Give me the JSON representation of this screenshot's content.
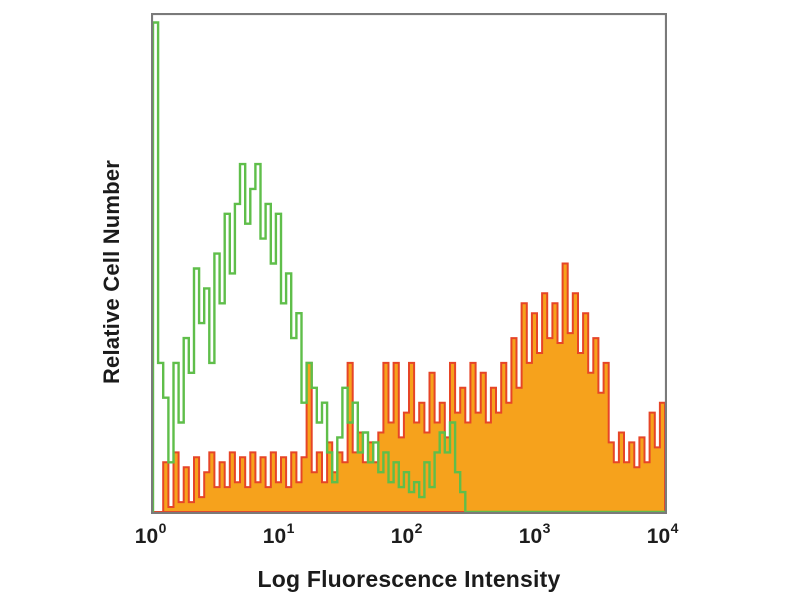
{
  "figure": {
    "background": "#ffffff",
    "frame_color": "#7a7a7a"
  },
  "chart_data": {
    "type": "area",
    "subtype": "flow-cytometry-histogram-overlay",
    "title": "",
    "xlabel": "Log Fluorescence Intensity",
    "ylabel": "Relative Cell Number",
    "x_scale": "log10",
    "xlim_log": [
      0,
      4
    ],
    "ylim": [
      0,
      1
    ],
    "grid": false,
    "legend": "none",
    "tick_base": "10",
    "x_tick_exponents": [
      0,
      1,
      2,
      3,
      4
    ],
    "bins_per_series": 100,
    "series": [
      {
        "name": "orange_filled_histogram",
        "style": "filled",
        "fill_color": "#f6a21c",
        "line_color": "#e64527",
        "values": [
          0,
          0,
          0.1,
          0.01,
          0.12,
          0.02,
          0.09,
          0.02,
          0.11,
          0.03,
          0.08,
          0.12,
          0.05,
          0.1,
          0.05,
          0.12,
          0.06,
          0.11,
          0.05,
          0.12,
          0.06,
          0.11,
          0.05,
          0.12,
          0.06,
          0.11,
          0.05,
          0.12,
          0.06,
          0.11,
          0.3,
          0.08,
          0.12,
          0.06,
          0.14,
          0.08,
          0.12,
          0.1,
          0.3,
          0.12,
          0.16,
          0.1,
          0.14,
          0.1,
          0.16,
          0.3,
          0.18,
          0.3,
          0.15,
          0.2,
          0.3,
          0.18,
          0.22,
          0.16,
          0.28,
          0.18,
          0.22,
          0.15,
          0.3,
          0.2,
          0.25,
          0.18,
          0.3,
          0.2,
          0.28,
          0.18,
          0.25,
          0.2,
          0.3,
          0.22,
          0.35,
          0.25,
          0.42,
          0.3,
          0.4,
          0.32,
          0.44,
          0.35,
          0.42,
          0.34,
          0.5,
          0.36,
          0.44,
          0.32,
          0.4,
          0.28,
          0.35,
          0.24,
          0.3,
          0.14,
          0.1,
          0.16,
          0.1,
          0.14,
          0.09,
          0.15,
          0.1,
          0.2,
          0.13,
          0.22
        ]
      },
      {
        "name": "green_outline_histogram",
        "style": "outline",
        "fill_color": "none",
        "line_color": "#5fbe4a",
        "values": [
          0.985,
          0.3,
          0.23,
          0.1,
          0.3,
          0.18,
          0.35,
          0.28,
          0.49,
          0.38,
          0.45,
          0.3,
          0.52,
          0.42,
          0.6,
          0.48,
          0.62,
          0.7,
          0.58,
          0.65,
          0.7,
          0.55,
          0.62,
          0.5,
          0.6,
          0.42,
          0.48,
          0.35,
          0.4,
          0.22,
          0.3,
          0.25,
          0.18,
          0.22,
          0.12,
          0.06,
          0.15,
          0.25,
          0.18,
          0.22,
          0.12,
          0.16,
          0.1,
          0.14,
          0.08,
          0.12,
          0.06,
          0.1,
          0.05,
          0.08,
          0.04,
          0.06,
          0.03,
          0.1,
          0.05,
          0.12,
          0.16,
          0.12,
          0.18,
          0.08,
          0.04,
          0,
          0,
          0,
          0,
          0,
          0,
          0,
          0,
          0,
          0,
          0,
          0,
          0,
          0,
          0,
          0,
          0,
          0,
          0,
          0,
          0,
          0,
          0,
          0,
          0,
          0,
          0,
          0,
          0,
          0,
          0,
          0,
          0,
          0,
          0,
          0,
          0,
          0,
          0
        ]
      }
    ]
  }
}
